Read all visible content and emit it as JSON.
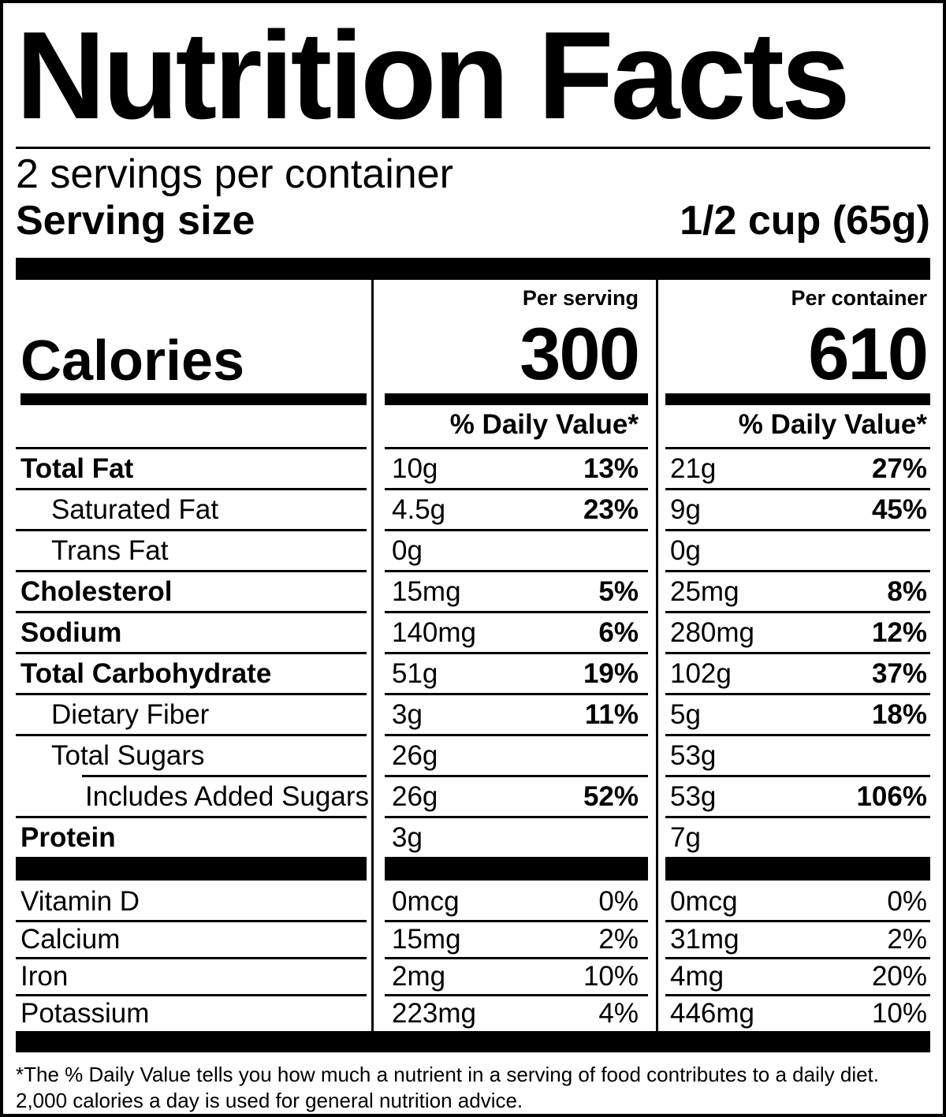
{
  "title": "Nutrition Facts",
  "servings_per_container": "2 servings per container",
  "serving_size": {
    "label": "Serving size",
    "value": "1/2 cup (65g)"
  },
  "calories": {
    "label": "Calories",
    "serving_header": "Per serving",
    "serving_value": "300",
    "container_header": "Per container",
    "container_value": "610"
  },
  "daily_value_header": {
    "serving": "% Daily Value*",
    "container": "% Daily Value*"
  },
  "rows": [
    {
      "name": "Total Fat",
      "s_amt": "10g",
      "s_dv": "13%",
      "c_amt": "21g",
      "c_dv": "27%"
    },
    {
      "name": "Saturated Fat",
      "s_amt": "4.5g",
      "s_dv": "23%",
      "c_amt": "9g",
      "c_dv": "45%"
    },
    {
      "name": "Trans Fat",
      "s_amt": "0g",
      "s_dv": "",
      "c_amt": "0g",
      "c_dv": ""
    },
    {
      "name": "Cholesterol",
      "s_amt": "15mg",
      "s_dv": "5%",
      "c_amt": "25mg",
      "c_dv": "8%"
    },
    {
      "name": "Sodium",
      "s_amt": "140mg",
      "s_dv": "6%",
      "c_amt": "280mg",
      "c_dv": "12%"
    },
    {
      "name": "Total Carbohydrate",
      "s_amt": "51g",
      "s_dv": "19%",
      "c_amt": "102g",
      "c_dv": "37%"
    },
    {
      "name": "Dietary Fiber",
      "s_amt": "3g",
      "s_dv": "11%",
      "c_amt": "5g",
      "c_dv": "18%"
    },
    {
      "name": "Total Sugars",
      "s_amt": "26g",
      "s_dv": "",
      "c_amt": "53g",
      "c_dv": ""
    },
    {
      "name": "Includes Added Sugars",
      "s_amt": "26g",
      "s_dv": "52%",
      "c_amt": "53g",
      "c_dv": "106%"
    },
    {
      "name": "Protein",
      "s_amt": "3g",
      "s_dv": "",
      "c_amt": "7g",
      "c_dv": ""
    }
  ],
  "vitamins": [
    {
      "name": "Vitamin D",
      "s_amt": "0mcg",
      "s_dv": "0%",
      "c_amt": "0mcg",
      "c_dv": "0%"
    },
    {
      "name": "Calcium",
      "s_amt": "15mg",
      "s_dv": "2%",
      "c_amt": "31mg",
      "c_dv": "2%"
    },
    {
      "name": "Iron",
      "s_amt": "2mg",
      "s_dv": "10%",
      "c_amt": "4mg",
      "c_dv": "20%"
    },
    {
      "name": "Potassium",
      "s_amt": "223mg",
      "s_dv": "4%",
      "c_amt": "446mg",
      "c_dv": "10%"
    }
  ],
  "footnote": {
    "line1": "*The % Daily Value tells you how much a nutrient in a serving of food contributes to a daily diet.",
    "line2": "2,000 calories a day is used for general nutrition advice."
  }
}
